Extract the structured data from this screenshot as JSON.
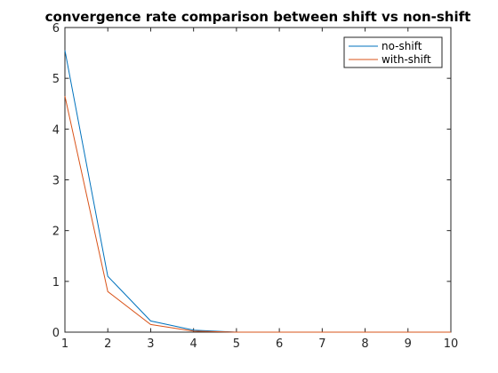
{
  "chart_data": {
    "type": "line",
    "title": "convergence rate comparison between shift vs non-shift",
    "xlabel": "",
    "ylabel": "",
    "xlim": [
      1,
      10
    ],
    "ylim": [
      0,
      6
    ],
    "xticks": [
      "1",
      "2",
      "3",
      "4",
      "5",
      "6",
      "7",
      "8",
      "9",
      "10"
    ],
    "yticks": [
      "0",
      "1",
      "2",
      "3",
      "4",
      "5",
      "6"
    ],
    "grid": false,
    "legend_position": "top-right",
    "x": [
      1,
      2,
      3,
      4,
      5,
      6,
      7,
      8,
      9,
      10
    ],
    "series": [
      {
        "name": "no-shift",
        "color": "#0072BD",
        "values": [
          5.55,
          1.1,
          0.22,
          0.04,
          0.0,
          0.0,
          0.0,
          0.0,
          0.0,
          0.0
        ]
      },
      {
        "name": "with-shift",
        "color": "#D95319",
        "values": [
          4.65,
          0.8,
          0.15,
          0.02,
          0.0,
          0.0,
          0.0,
          0.0,
          0.0,
          0.0
        ]
      }
    ]
  }
}
